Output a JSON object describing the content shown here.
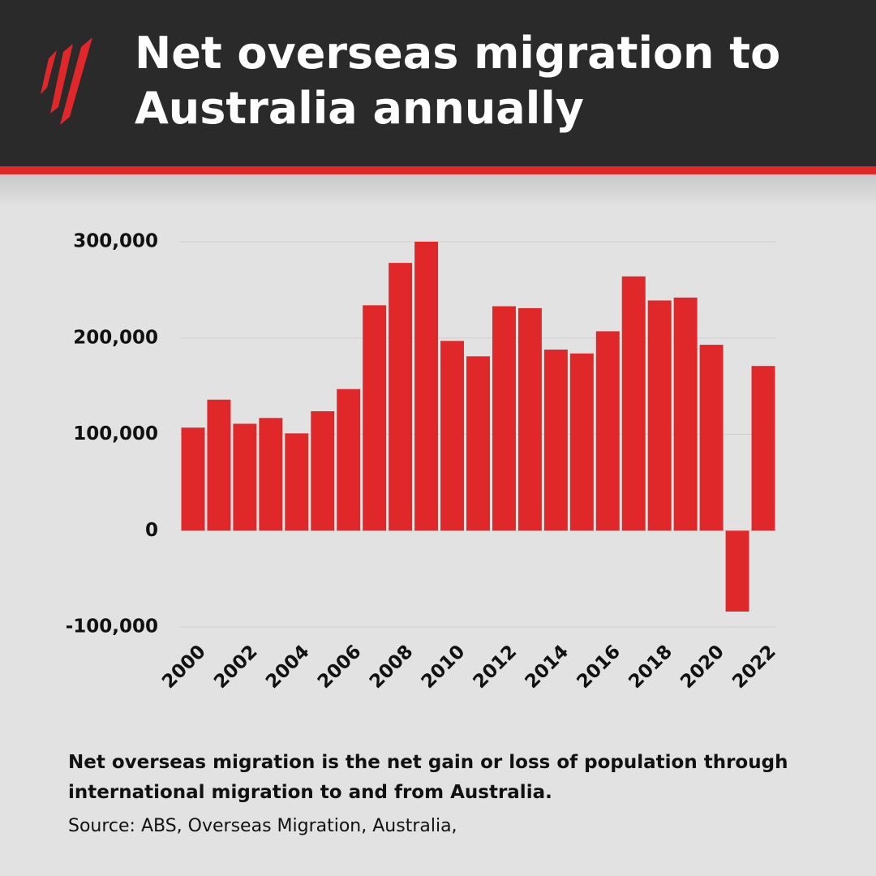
{
  "chart_data": {
    "type": "bar",
    "title": "Net overseas migration to Australia annually",
    "note": "Net overseas migration is the net gain or loss of population through international migration to and from Australia.",
    "source": "Source: ABS, Overseas Migration, Australia,",
    "categories": [
      "2000",
      null,
      "2002",
      null,
      "2004",
      null,
      "2006",
      null,
      "2008",
      null,
      "2010",
      null,
      "2012",
      null,
      "2014",
      null,
      "2016",
      null,
      "2018",
      null,
      "2020",
      null,
      "2022"
    ],
    "values": [
      107000,
      136000,
      111000,
      117000,
      101000,
      124000,
      147000,
      234000,
      278000,
      300000,
      197000,
      181000,
      233000,
      231000,
      188000,
      184000,
      207000,
      264000,
      239000,
      242000,
      193000,
      -84000,
      171000
    ],
    "color": "#e0282a",
    "ylim": [
      -100000,
      300000
    ],
    "yticks": [
      {
        "value": -100000,
        "label": "-100,000"
      },
      0,
      {
        "value": 100000,
        "label": "100,000"
      },
      {
        "value": 200000,
        "label": "200,000"
      },
      {
        "value": 300000,
        "label": "300,000"
      }
    ],
    "grid": true
  }
}
